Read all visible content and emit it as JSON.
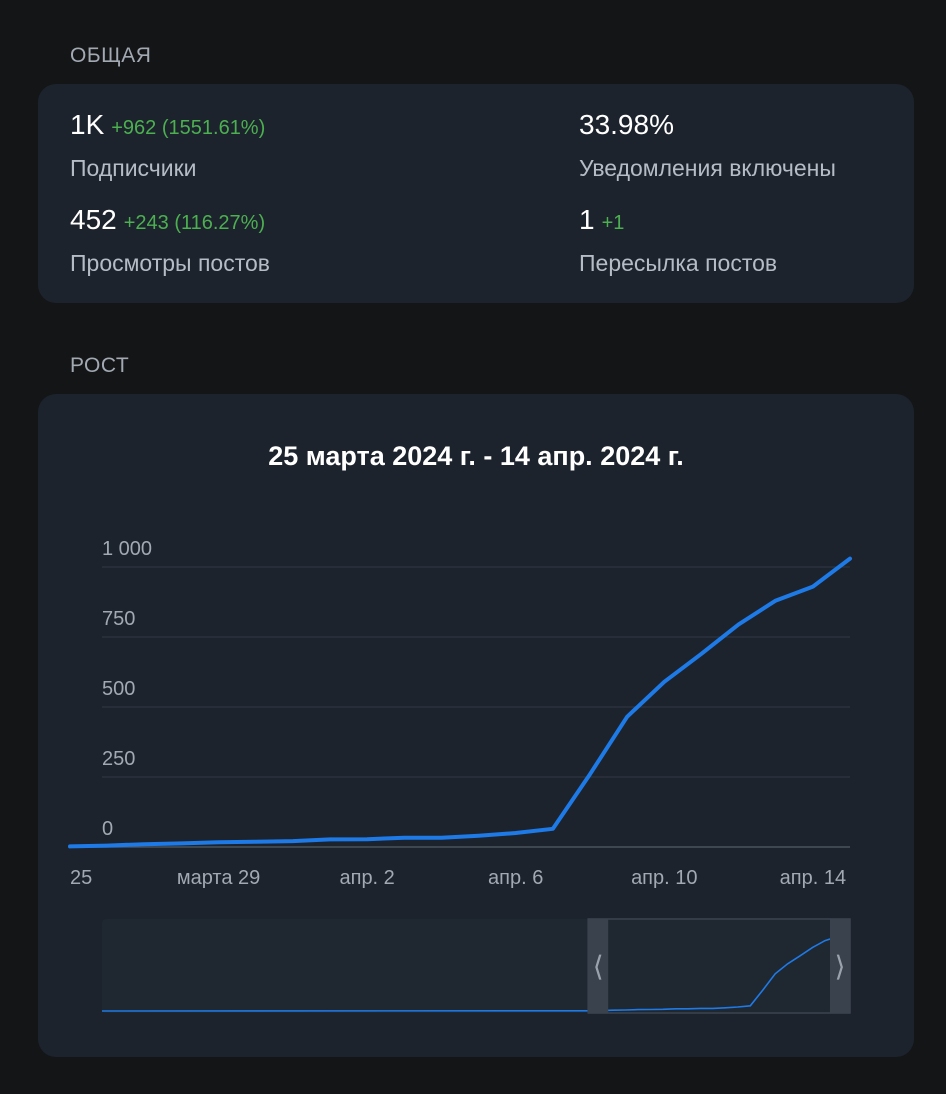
{
  "general": {
    "section_title": "ОБЩАЯ",
    "stats": [
      {
        "value": "1K",
        "delta": "+962 (1551.61%)",
        "label": "Подписчики"
      },
      {
        "value": "33.98%",
        "delta": "",
        "label": "Уведомления включены"
      },
      {
        "value": "452",
        "delta": "+243 (116.27%)",
        "label": "Просмотры постов"
      },
      {
        "value": "1",
        "delta": "+1",
        "label": "Пересылка постов"
      }
    ]
  },
  "growth": {
    "section_title": "РОСТ"
  },
  "colors": {
    "background": "#141517",
    "card": "#1c232d",
    "positive_delta": "#4caf50",
    "line": "#1e7ae6"
  },
  "chart_data": {
    "type": "line",
    "title": "25 марта 2024 г. - 14 апр. 2024 г.",
    "xlabel": "",
    "ylabel": "",
    "x": [
      "2024-03-25",
      "2024-03-26",
      "2024-03-27",
      "2024-03-28",
      "2024-03-29",
      "2024-03-30",
      "2024-03-31",
      "2024-04-01",
      "2024-04-02",
      "2024-04-03",
      "2024-04-04",
      "2024-04-05",
      "2024-04-06",
      "2024-04-07",
      "2024-04-08",
      "2024-04-09",
      "2024-04-10",
      "2024-04-11",
      "2024-04-12",
      "2024-04-13",
      "2024-04-14",
      "2024-04-15"
    ],
    "series": [
      {
        "values": [
          2,
          5,
          10,
          13,
          17,
          19,
          21,
          27,
          28,
          33,
          33,
          40,
          50,
          65,
          260,
          465,
          590,
          690,
          795,
          880,
          930,
          1030
        ]
      }
    ],
    "x_tick_labels": [
      "25",
      "марта 29",
      "апр. 2",
      "апр. 6",
      "апр. 10",
      "апр. 14"
    ],
    "y_ticks": [
      0,
      250,
      500,
      750,
      1000
    ],
    "y_tick_labels": [
      "0",
      "250",
      "500",
      "750",
      "1 000"
    ],
    "ylim": [
      0,
      1000
    ],
    "grid": true,
    "legend": "none",
    "navigator": {
      "overview_start": "2024-02-15",
      "selected_range": [
        "2024-03-25",
        "2024-04-15"
      ]
    }
  }
}
